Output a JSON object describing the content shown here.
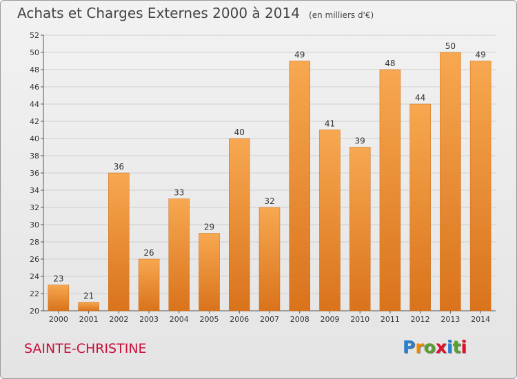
{
  "title": "Achats et Charges Externes 2000 à 2014",
  "unit_note": "(en milliers d'€)",
  "town": "SAINTE-CHRISTINE",
  "logo": {
    "letters": [
      "P",
      "r",
      "o",
      "x",
      "i",
      "t",
      "i"
    ],
    "colors": [
      "#2a7fd0",
      "#f28c00",
      "#5aa02c",
      "#e0102e",
      "#2a7fd0",
      "#5aa02c",
      "#e0102e"
    ]
  },
  "chart_data": {
    "type": "bar",
    "categories": [
      "2000",
      "2001",
      "2002",
      "2003",
      "2004",
      "2005",
      "2006",
      "2007",
      "2008",
      "2009",
      "2010",
      "2011",
      "2012",
      "2013",
      "2014"
    ],
    "values": [
      23,
      21,
      36,
      26,
      33,
      29,
      40,
      32,
      49,
      41,
      39,
      48,
      44,
      50,
      49
    ],
    "ylim": [
      20,
      52
    ],
    "yticks": [
      20,
      22,
      24,
      26,
      28,
      30,
      32,
      34,
      36,
      38,
      40,
      42,
      44,
      46,
      48,
      50,
      52
    ],
    "grid": true,
    "bar_color": "#f0a050"
  }
}
